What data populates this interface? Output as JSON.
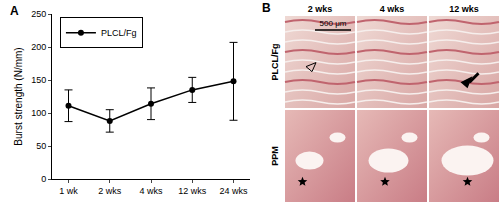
{
  "chart_data": {
    "type": "line",
    "annotations": [
      "A"
    ],
    "y_label": "Burst strength (N/mm)",
    "categories": [
      "1 wk",
      "2 wks",
      "4 wks",
      "12 wks",
      "24 wks"
    ],
    "series": [
      {
        "name": "PLCL/Fg",
        "color": "#000000",
        "marker": "circle",
        "values": [
          111,
          88,
          114,
          135,
          148
        ],
        "errors": [
          24,
          17,
          24,
          19,
          59
        ]
      }
    ],
    "ylim": [
      0,
      250
    ],
    "yticks": [
      0,
      50,
      100,
      150,
      200,
      250
    ],
    "grid": false,
    "legend": "top-left"
  },
  "panel_b": {
    "label": "B",
    "columns": [
      "2 wks",
      "4 wks",
      "12 wks"
    ],
    "rows": [
      "PLCL/Fg",
      "PPM"
    ],
    "scale_bar": "500 μm"
  }
}
